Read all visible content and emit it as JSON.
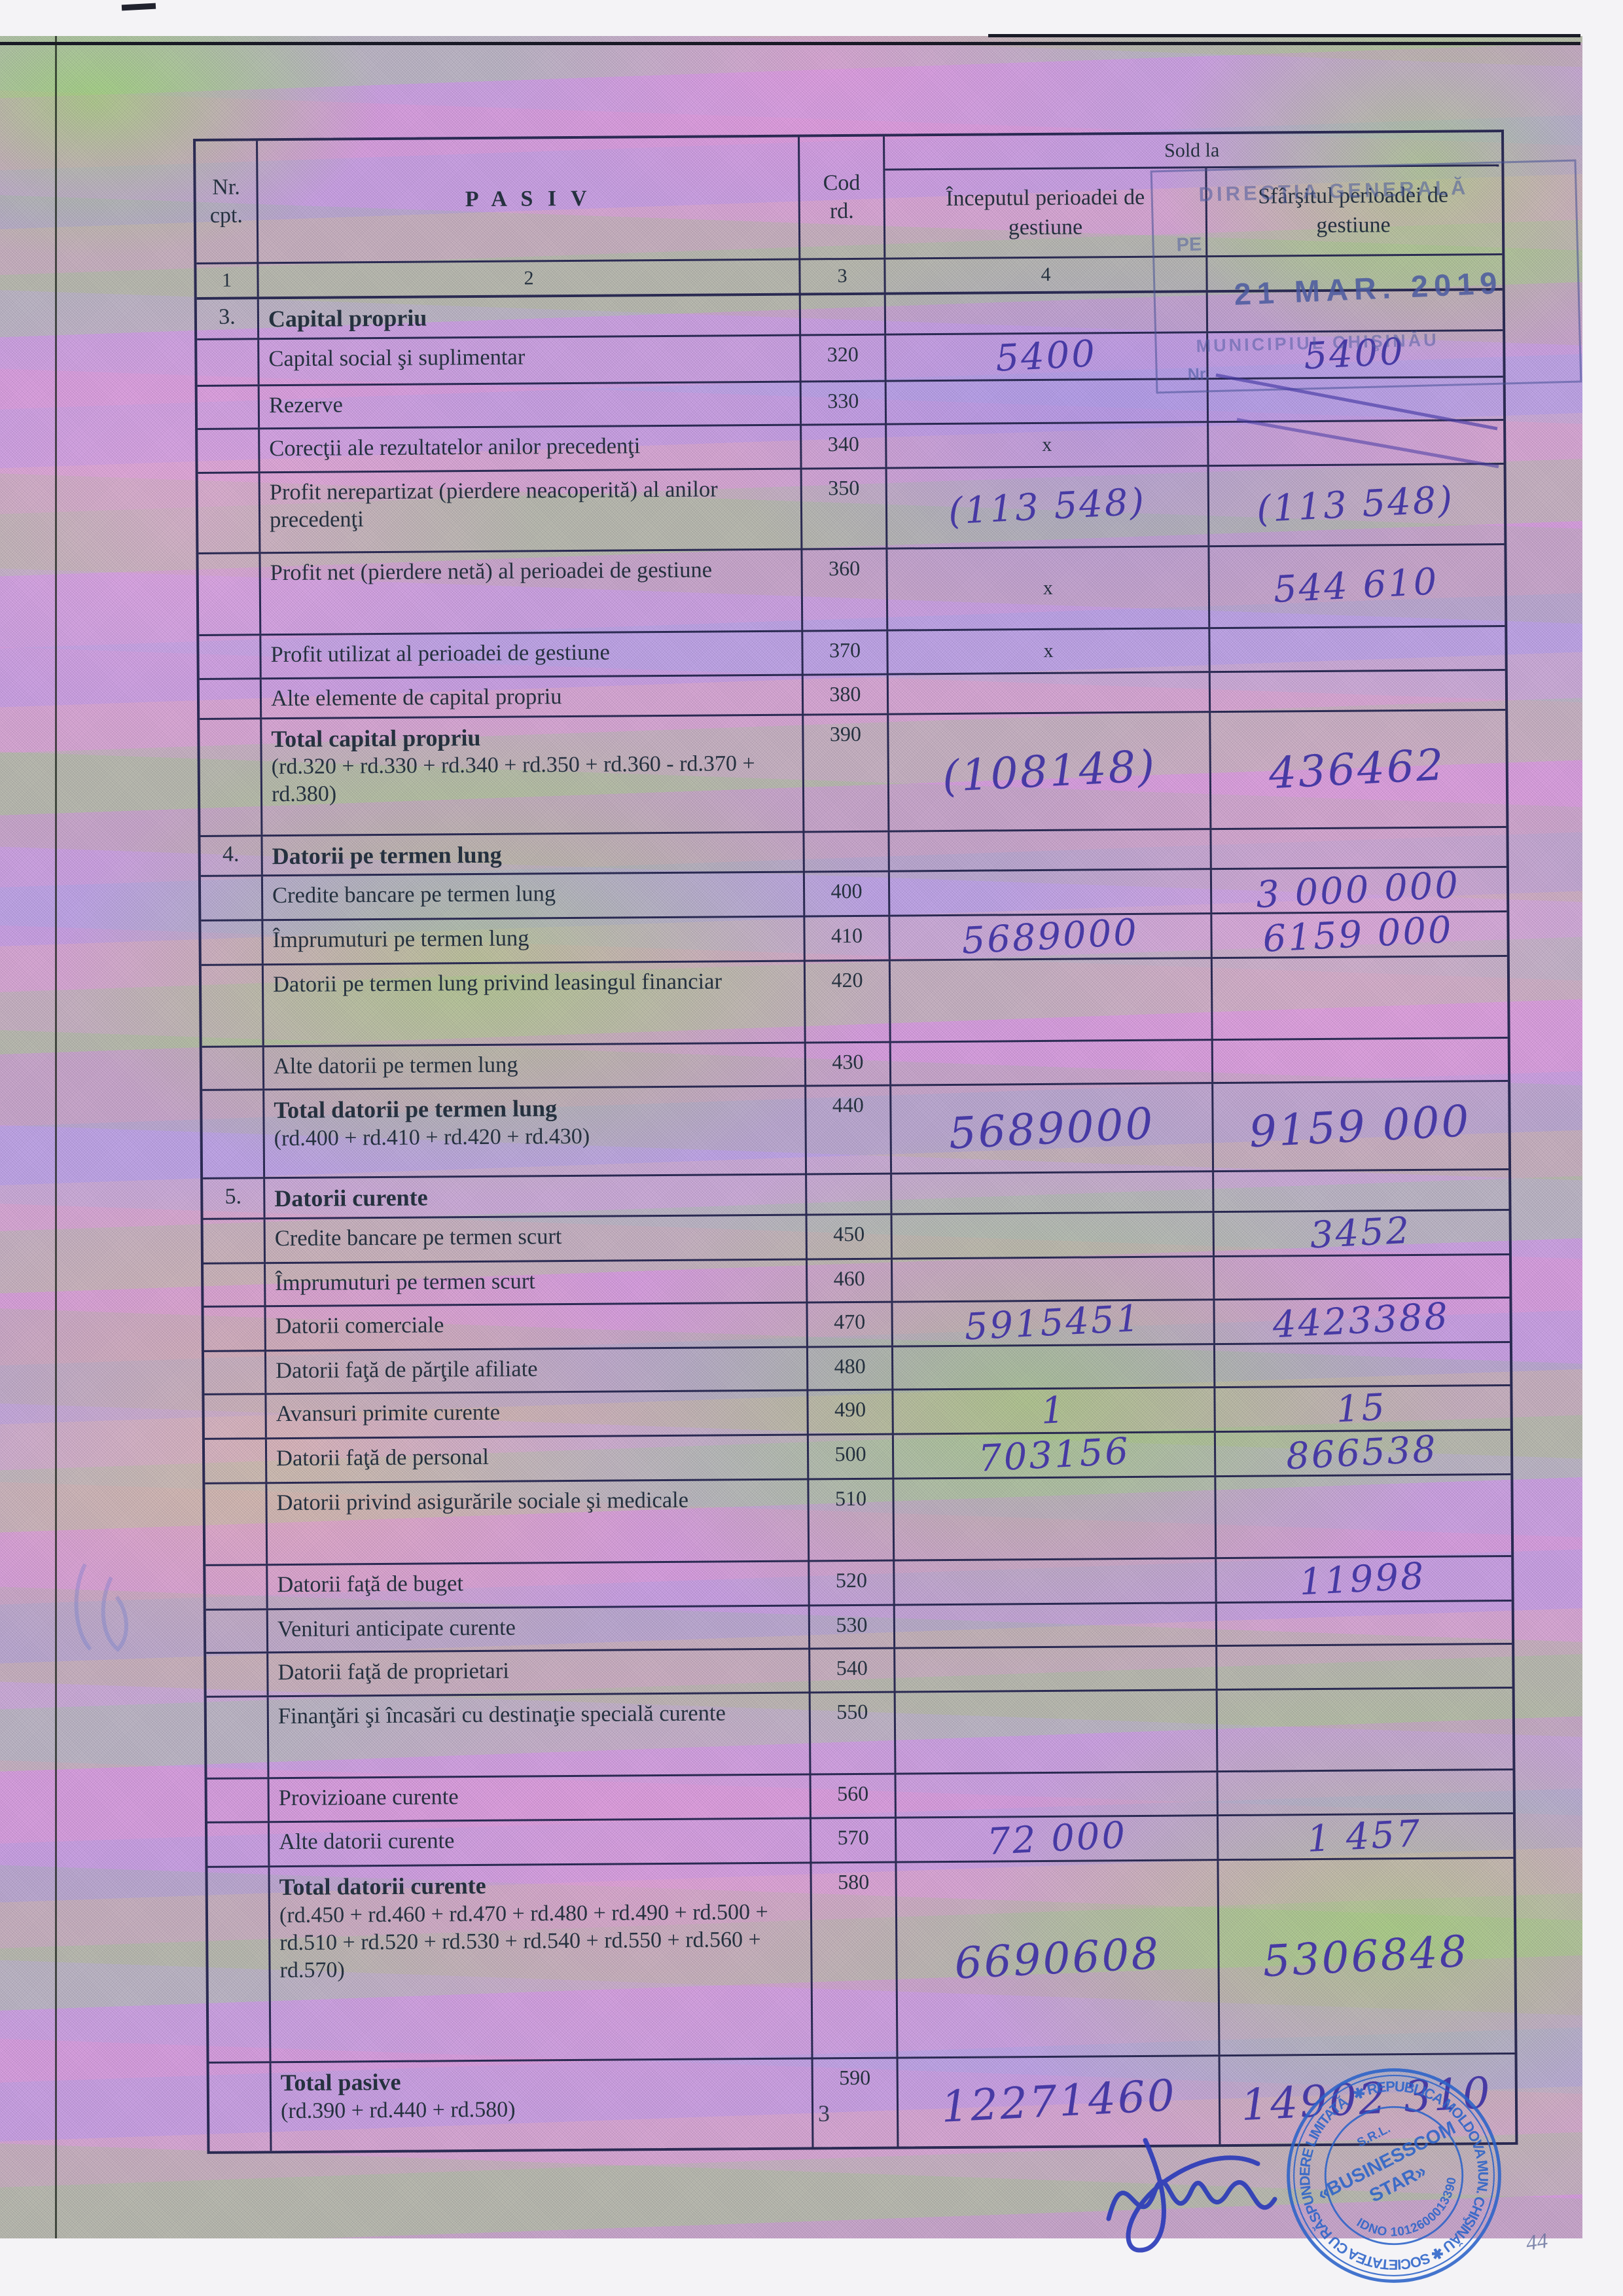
{
  "page": {
    "number": "3",
    "margin_note": "44"
  },
  "table": {
    "header": {
      "nr": "Nr.\ncpt.",
      "pasiv": "P A S I V",
      "cod": "Cod\nrd.",
      "sold": "Sold la",
      "start": "Începutul perioadei de\ngestiune",
      "end": "Sfârşitul perioadei de\ngestiune",
      "nums": [
        "1",
        "2",
        "3",
        "4",
        ""
      ]
    },
    "rows": [
      {
        "nr": "3.",
        "label": "Capital propriu",
        "section": true
      },
      {
        "label": "Capital social şi suplimentar",
        "cod": "320",
        "start": "5400",
        "end": "5400"
      },
      {
        "label": "Rezerve",
        "cod": "330"
      },
      {
        "label": "Corecţii ale rezultatelor anilor precedenţi",
        "cod": "340",
        "start": "x"
      },
      {
        "label": "Profit nerepartizat (pierdere neacoperită) al anilor precedenţi",
        "cod": "350",
        "start": "(113 548)",
        "end": "(113 548)"
      },
      {
        "label": "Profit net (pierdere netă) al perioadei de gestiune",
        "cod": "360",
        "start": "x",
        "end": "544 610"
      },
      {
        "label": "Profit utilizat al perioadei de gestiune",
        "cod": "370",
        "start": "x"
      },
      {
        "label": "Alte elemente de capital propriu",
        "cod": "380"
      },
      {
        "label": "Total capital propriu",
        "formula": "(rd.320 + rd.330 + rd.340 + rd.350 + rd.360 - rd.370 + rd.380)",
        "cod": "390",
        "bold": true,
        "start": "(108148)",
        "end": "436462"
      },
      {
        "nr": "4.",
        "label": "Datorii pe termen lung",
        "section": true
      },
      {
        "label": "Credite bancare pe termen lung",
        "cod": "400",
        "end": "3 000 000"
      },
      {
        "label": "Împrumuturi pe termen lung",
        "cod": "410",
        "start": "5689000",
        "end": "6159 000"
      },
      {
        "label": "Datorii pe termen lung privind leasingul financiar",
        "cod": "420"
      },
      {
        "label": "Alte datorii pe termen lung",
        "cod": "430"
      },
      {
        "label": "Total datorii pe termen lung",
        "formula": "(rd.400 + rd.410 + rd.420 + rd.430)",
        "cod": "440",
        "bold": true,
        "start": "5689000",
        "end": "9159 000"
      },
      {
        "nr": "5.",
        "label": "Datorii curente",
        "section": true
      },
      {
        "label": "Credite bancare pe termen scurt",
        "cod": "450",
        "end": "3452"
      },
      {
        "label": "Împrumuturi pe termen scurt",
        "cod": "460"
      },
      {
        "label": "Datorii comerciale",
        "cod": "470",
        "start": "5915451",
        "end": "4423388"
      },
      {
        "label": "Datorii faţă de părţile afiliate",
        "cod": "480"
      },
      {
        "label": "Avansuri primite curente",
        "cod": "490",
        "start": "1",
        "end": "15"
      },
      {
        "label": "Datorii faţă de personal",
        "cod": "500",
        "start": "703156",
        "end": "866538"
      },
      {
        "label": "Datorii privind asigurările sociale şi medicale",
        "cod": "510"
      },
      {
        "label": "Datorii faţă de buget",
        "cod": "520",
        "end": "11998"
      },
      {
        "label": "Venituri anticipate curente",
        "cod": "530"
      },
      {
        "label": "Datorii faţă de proprietari",
        "cod": "540"
      },
      {
        "label": "Finanţări şi încasări cu destinaţie specială curente",
        "cod": "550"
      },
      {
        "label": "Provizioane curente",
        "cod": "560"
      },
      {
        "label": "Alte datorii curente",
        "cod": "570",
        "start": "72 000",
        "end": "1 457"
      },
      {
        "label": "Total datorii curente",
        "formula": "(rd.450 + rd.460 + rd.470 + rd.480 + rd.490 + rd.500 + rd.510 + rd.520 + rd.530 + rd.540 + rd.550 + rd.560 + rd.570)",
        "cod": "580",
        "bold": true,
        "start": "6690608",
        "end": "5306848"
      },
      {
        "label": "Total pasive",
        "formula": "(rd.390 + rd.440 + rd.580)",
        "cod": "590",
        "bold": true,
        "start": "12271460",
        "end": "14902 310"
      }
    ]
  },
  "stamps": {
    "registry": {
      "line1": "DIRECŢIA GENERALĂ",
      "line2": "PE",
      "date": "21 MAR. 2019",
      "line3": "MUNICIPIUL CHIŞINĂU",
      "nr_label": "Nr."
    },
    "company": {
      "ring": "✱ REPUBLICA MOLDOVA MUN. CHIŞINĂU ✱ SOCIETATEA CU RĂSPUNDERE LIMITATĂ",
      "srl": "S.R.L.",
      "name1": "«BUSINESSCOM",
      "name2": "STAR»",
      "idno": "IDNO 1012600013390"
    }
  },
  "colors": {
    "ink": "#473aa4",
    "stamp_blue": "#2b63c9",
    "print": "#25313f",
    "table_line": "#2a2a52"
  }
}
